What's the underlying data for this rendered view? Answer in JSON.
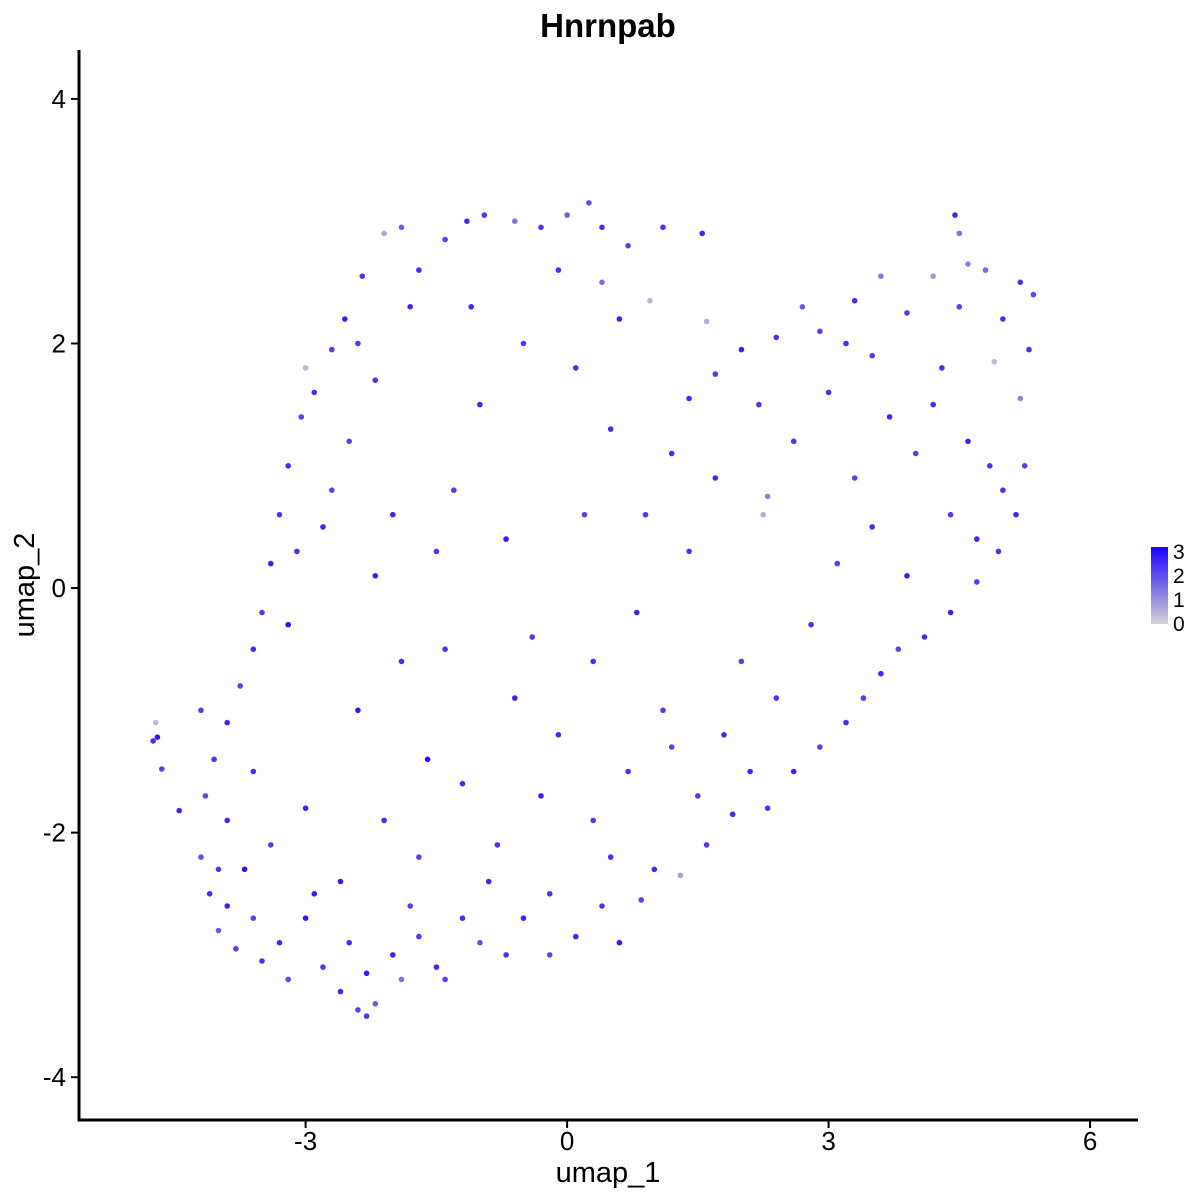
{
  "chart_data": {
    "type": "scatter",
    "title": "Hnrnpab",
    "xlabel": "umap_1",
    "ylabel": "umap_2",
    "xlim": [
      -5.6,
      6.55
    ],
    "ylim": [
      -4.35,
      4.4
    ],
    "x_ticks": [
      -3,
      0,
      3,
      6
    ],
    "x_tick_labels": [
      "-3",
      "0",
      "3",
      "6"
    ],
    "y_ticks": [
      -4,
      -2,
      0,
      2,
      4
    ],
    "y_tick_labels": [
      "-4",
      "-2",
      "0",
      "2",
      "4"
    ],
    "grid": false,
    "legend": {
      "type": "colorbar",
      "position": "right",
      "labels": [
        "3",
        "2",
        "1",
        "0"
      ],
      "values": [
        3,
        2,
        1,
        0
      ],
      "range": [
        0,
        3.2
      ]
    },
    "colors": {
      "low": "#d3d3d3",
      "high": "#1a00ff"
    },
    "series": [
      {
        "points": [
          [
            -4.75,
            -1.25,
            2.4
          ],
          [
            -4.7,
            -1.22,
            2.8
          ],
          [
            -4.72,
            -1.1,
            0.4
          ],
          [
            -4.65,
            -1.48,
            2.2
          ],
          [
            -4.45,
            -1.82,
            2.6
          ],
          [
            -4.2,
            -2.2,
            2.0
          ],
          [
            -4.1,
            -2.5,
            2.5
          ],
          [
            -4.0,
            -2.8,
            1.9
          ],
          [
            -3.9,
            -2.6,
            2.7
          ],
          [
            -3.8,
            -2.95,
            2.2
          ],
          [
            -3.7,
            -2.3,
            2.9
          ],
          [
            -3.5,
            -3.05,
            2.4
          ],
          [
            -3.3,
            -2.9,
            2.6
          ],
          [
            -3.2,
            -3.2,
            2.1
          ],
          [
            -3.0,
            -2.7,
            2.8
          ],
          [
            -2.8,
            -3.1,
            2.3
          ],
          [
            -2.6,
            -3.3,
            2.6
          ],
          [
            -2.4,
            -3.45,
            2.2
          ],
          [
            -2.3,
            -3.5,
            2.4
          ],
          [
            -2.2,
            -3.4,
            1.8
          ],
          [
            -2.0,
            -3.0,
            2.7
          ],
          [
            -1.9,
            -3.2,
            1.5
          ],
          [
            -1.7,
            -2.85,
            2.3
          ],
          [
            -1.5,
            -3.1,
            2.6
          ],
          [
            -1.4,
            -3.2,
            2.2
          ],
          [
            -1.2,
            -2.7,
            2.5
          ],
          [
            -1.0,
            -2.9,
            2.0
          ],
          [
            -0.7,
            -3.0,
            2.4
          ],
          [
            -0.5,
            -2.7,
            2.7
          ],
          [
            -0.2,
            -3.0,
            2.1
          ],
          [
            0.1,
            -2.85,
            2.6
          ],
          [
            0.4,
            -2.6,
            2.4
          ],
          [
            0.6,
            -2.9,
            2.8
          ],
          [
            0.85,
            -2.55,
            2.2
          ],
          [
            1.0,
            -2.3,
            2.5
          ],
          [
            1.3,
            -2.35,
            0.8
          ],
          [
            1.6,
            -2.1,
            2.3
          ],
          [
            1.9,
            -1.85,
            2.6
          ],
          [
            2.3,
            -1.8,
            2.4
          ],
          [
            2.6,
            -1.5,
            2.7
          ],
          [
            2.9,
            -1.3,
            2.2
          ],
          [
            3.2,
            -1.1,
            2.5
          ],
          [
            3.4,
            -0.9,
            2.3
          ],
          [
            3.6,
            -0.7,
            2.6
          ],
          [
            3.8,
            -0.5,
            2.2
          ],
          [
            4.1,
            -0.4,
            2.5
          ],
          [
            4.4,
            -0.2,
            2.7
          ],
          [
            4.7,
            0.05,
            2.3
          ],
          [
            4.95,
            0.3,
            2.4
          ],
          [
            5.15,
            0.6,
            2.6
          ],
          [
            5.25,
            1.0,
            2.2
          ],
          [
            5.2,
            1.55,
            1.2
          ],
          [
            5.3,
            1.95,
            2.5
          ],
          [
            5.35,
            2.4,
            2.1
          ],
          [
            5.2,
            2.5,
            2.4
          ],
          [
            4.9,
            1.85,
            0.4
          ],
          [
            4.6,
            2.65,
            1.3
          ],
          [
            4.45,
            3.05,
            2.6
          ],
          [
            4.5,
            2.9,
            1.5
          ],
          [
            4.2,
            2.55,
            0.9
          ],
          [
            3.9,
            2.25,
            2.3
          ],
          [
            3.6,
            2.55,
            1.4
          ],
          [
            3.3,
            2.35,
            2.5
          ],
          [
            2.9,
            2.1,
            2.2
          ],
          [
            2.7,
            2.3,
            1.9
          ],
          [
            2.4,
            2.05,
            2.4
          ],
          [
            2.0,
            1.95,
            2.7
          ],
          [
            1.7,
            1.75,
            2.3
          ],
          [
            1.4,
            1.55,
            2.6
          ],
          [
            1.6,
            2.18,
            0.6
          ],
          [
            1.55,
            2.9,
            2.6
          ],
          [
            1.1,
            2.95,
            2.4
          ],
          [
            0.95,
            2.35,
            0.5
          ],
          [
            0.7,
            2.8,
            2.2
          ],
          [
            0.4,
            2.95,
            2.5
          ],
          [
            0.25,
            3.15,
            2.0
          ],
          [
            0.0,
            3.05,
            1.7
          ],
          [
            -0.3,
            2.95,
            2.4
          ],
          [
            -0.6,
            3.0,
            1.5
          ],
          [
            -0.95,
            3.05,
            2.3
          ],
          [
            -1.15,
            3.0,
            2.6
          ],
          [
            -1.4,
            2.85,
            2.2
          ],
          [
            -1.7,
            2.6,
            2.5
          ],
          [
            -1.9,
            2.95,
            1.8
          ],
          [
            -2.1,
            2.9,
            0.7
          ],
          [
            -2.35,
            2.55,
            2.4
          ],
          [
            -2.55,
            2.2,
            2.7
          ],
          [
            -2.7,
            1.95,
            2.3
          ],
          [
            -2.9,
            1.6,
            2.5
          ],
          [
            -3.05,
            1.4,
            2.2
          ],
          [
            -3.0,
            1.8,
            0.5
          ],
          [
            -3.2,
            1.0,
            2.6
          ],
          [
            -3.3,
            0.6,
            2.4
          ],
          [
            -3.4,
            0.2,
            2.7
          ],
          [
            -3.5,
            -0.2,
            2.3
          ],
          [
            -3.6,
            -0.5,
            2.5
          ],
          [
            -3.75,
            -0.8,
            2.2
          ],
          [
            -3.9,
            -1.1,
            2.6
          ],
          [
            -4.05,
            -1.4,
            2.4
          ],
          [
            -4.15,
            -1.7,
            2.1
          ],
          [
            -3.2,
            -0.3,
            2.9
          ],
          [
            -2.8,
            0.5,
            2.6
          ],
          [
            -2.5,
            1.2,
            2.2
          ],
          [
            -2.2,
            0.1,
            2.7
          ],
          [
            -1.9,
            -0.6,
            2.5
          ],
          [
            -1.6,
            -1.4,
            3.0
          ],
          [
            -1.3,
            0.8,
            2.3
          ],
          [
            -1.0,
            1.5,
            2.6
          ],
          [
            -0.7,
            0.4,
            2.8
          ],
          [
            -0.4,
            -0.4,
            2.4
          ],
          [
            -0.1,
            -1.2,
            2.6
          ],
          [
            0.2,
            0.6,
            2.2
          ],
          [
            0.5,
            1.3,
            2.5
          ],
          [
            0.8,
            -0.2,
            2.7
          ],
          [
            1.1,
            -1.0,
            2.3
          ],
          [
            1.4,
            0.3,
            2.4
          ],
          [
            1.7,
            0.9,
            2.6
          ],
          [
            2.0,
            -0.6,
            2.2
          ],
          [
            2.3,
            0.75,
            1.3
          ],
          [
            2.25,
            0.6,
            0.6
          ],
          [
            2.6,
            1.2,
            2.4
          ],
          [
            3.0,
            1.6,
            2.5
          ],
          [
            3.3,
            0.9,
            2.2
          ],
          [
            3.7,
            1.4,
            2.6
          ],
          [
            4.0,
            1.1,
            2.3
          ],
          [
            4.3,
            1.8,
            2.5
          ],
          [
            4.6,
            1.2,
            2.7
          ],
          [
            4.85,
            1.0,
            2.4
          ],
          [
            -2.6,
            -2.4,
            2.8
          ],
          [
            -2.1,
            -1.9,
            2.5
          ],
          [
            -1.7,
            -2.2,
            2.2
          ],
          [
            -1.2,
            -1.6,
            2.6
          ],
          [
            -0.8,
            -2.1,
            2.4
          ],
          [
            -0.3,
            -1.7,
            2.7
          ],
          [
            0.3,
            -1.9,
            2.3
          ],
          [
            0.7,
            -1.5,
            2.5
          ],
          [
            1.2,
            -1.3,
            2.2
          ],
          [
            1.8,
            -1.2,
            2.6
          ],
          [
            2.4,
            -0.9,
            2.4
          ],
          [
            -3.0,
            -1.8,
            2.7
          ],
          [
            -3.4,
            -2.1,
            2.3
          ],
          [
            -3.6,
            -1.5,
            2.5
          ],
          [
            -2.4,
            -1.0,
            2.8
          ],
          [
            -1.5,
            0.3,
            2.4
          ],
          [
            -1.1,
            2.3,
            2.6
          ],
          [
            -0.5,
            2.0,
            2.3
          ],
          [
            0.1,
            1.8,
            2.5
          ],
          [
            0.6,
            2.2,
            2.7
          ],
          [
            -2.2,
            1.7,
            2.4
          ],
          [
            -1.8,
            2.3,
            2.6
          ],
          [
            -2.7,
            0.8,
            2.2
          ],
          [
            -3.1,
            0.3,
            2.5
          ],
          [
            -4.2,
            -1.0,
            2.3
          ],
          [
            -3.9,
            -1.9,
            2.6
          ],
          [
            -4.0,
            -2.3,
            2.4
          ],
          [
            -3.6,
            -2.7,
            2.2
          ],
          [
            -2.9,
            -2.5,
            2.7
          ],
          [
            -2.5,
            -2.9,
            2.5
          ],
          [
            -2.3,
            -3.15,
            2.8
          ],
          [
            -1.8,
            -2.6,
            2.3
          ],
          [
            -0.9,
            -2.4,
            2.6
          ],
          [
            -0.2,
            -2.5,
            2.4
          ],
          [
            0.5,
            -2.2,
            2.5
          ],
          [
            1.5,
            -1.7,
            2.3
          ],
          [
            2.1,
            -1.5,
            2.6
          ],
          [
            2.8,
            -0.3,
            2.4
          ],
          [
            3.1,
            0.2,
            2.2
          ],
          [
            3.5,
            0.5,
            2.5
          ],
          [
            3.9,
            0.1,
            2.7
          ],
          [
            4.4,
            0.6,
            2.3
          ],
          [
            4.7,
            0.4,
            2.6
          ],
          [
            5.0,
            0.8,
            2.4
          ],
          [
            4.5,
            2.3,
            2.2
          ],
          [
            4.8,
            2.6,
            1.6
          ],
          [
            5.0,
            2.2,
            2.5
          ],
          [
            4.2,
            1.5,
            2.6
          ],
          [
            3.5,
            1.9,
            2.3
          ],
          [
            3.2,
            2.0,
            2.5
          ],
          [
            2.2,
            1.5,
            2.4
          ],
          [
            1.2,
            1.1,
            2.6
          ],
          [
            0.9,
            0.6,
            2.3
          ],
          [
            0.3,
            -0.6,
            2.5
          ],
          [
            -0.6,
            -0.9,
            2.7
          ],
          [
            -1.4,
            -0.5,
            2.4
          ],
          [
            -2.0,
            0.6,
            2.6
          ],
          [
            -2.4,
            2.0,
            2.3
          ],
          [
            -0.1,
            2.6,
            2.5
          ],
          [
            0.4,
            2.5,
            1.6
          ]
        ]
      }
    ]
  }
}
